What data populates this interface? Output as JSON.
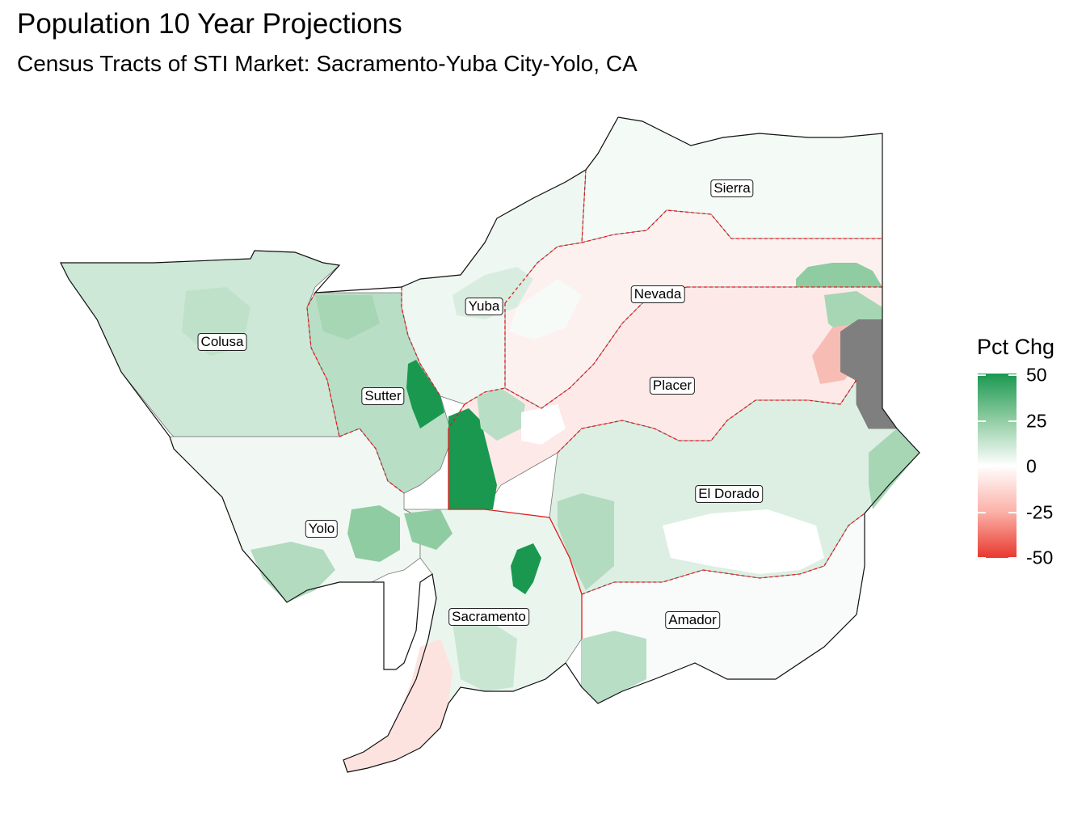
{
  "title": "Population 10 Year Projections",
  "subtitle": "Census Tracts of STI Market: Sacramento-Yuba City-Yolo, CA",
  "legend": {
    "title": "Pct Chg",
    "ticks": [
      "50",
      "25",
      "0",
      "-25",
      "-50"
    ],
    "scale": {
      "min": -50,
      "max": 50,
      "low_color": "#e8382e",
      "mid_color": "#ffffff",
      "high_color": "#1a9850"
    },
    "na_color": "#7f7f7f"
  },
  "counties": [
    {
      "name": "Sierra"
    },
    {
      "name": "Nevada"
    },
    {
      "name": "Yuba"
    },
    {
      "name": "Colusa"
    },
    {
      "name": "Sutter"
    },
    {
      "name": "Placer"
    },
    {
      "name": "El Dorado"
    },
    {
      "name": "Yolo"
    },
    {
      "name": "Sacramento"
    },
    {
      "name": "Amador"
    }
  ]
}
